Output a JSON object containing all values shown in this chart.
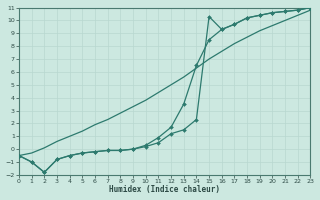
{
  "xlabel": "Humidex (Indice chaleur)",
  "xlim": [
    0,
    23
  ],
  "ylim": [
    -2,
    11
  ],
  "xticks": [
    0,
    1,
    2,
    3,
    4,
    5,
    6,
    7,
    8,
    9,
    10,
    11,
    12,
    13,
    14,
    15,
    16,
    17,
    18,
    19,
    20,
    21,
    22,
    23
  ],
  "yticks": [
    -2,
    -1,
    0,
    1,
    2,
    3,
    4,
    5,
    6,
    7,
    8,
    9,
    10,
    11
  ],
  "line_color": "#2d7a6e",
  "bg_color": "#cce8e0",
  "grid_color": "#b8d8d0",
  "line1_x": [
    0,
    1,
    2,
    3,
    4,
    5,
    6,
    7,
    8,
    9,
    10,
    11,
    12,
    13,
    14,
    15,
    16,
    17,
    18,
    19,
    20,
    21,
    22,
    23
  ],
  "line1_y": [
    -0.5,
    -1.0,
    -1.8,
    -0.8,
    -0.5,
    -0.3,
    -0.2,
    -0.1,
    -0.1,
    0.0,
    0.2,
    0.5,
    1.2,
    1.5,
    2.3,
    10.3,
    9.3,
    9.7,
    10.2,
    10.4,
    10.6,
    10.7,
    10.8,
    11.0
  ],
  "line2_x": [
    0,
    1,
    2,
    3,
    4,
    5,
    6,
    7,
    8,
    9,
    10,
    11,
    12,
    13,
    14,
    15,
    16,
    17,
    18,
    19,
    20,
    21,
    22,
    23
  ],
  "line2_y": [
    -0.5,
    -0.3,
    0.1,
    0.6,
    1.0,
    1.4,
    1.9,
    2.3,
    2.8,
    3.3,
    3.8,
    4.4,
    5.0,
    5.6,
    6.3,
    7.0,
    7.6,
    8.2,
    8.7,
    9.2,
    9.6,
    10.0,
    10.4,
    10.8
  ],
  "line3_x": [
    0,
    1,
    2,
    3,
    4,
    5,
    6,
    7,
    8,
    9,
    10,
    11,
    12,
    13,
    14,
    15,
    16,
    17,
    18,
    19,
    20,
    21,
    22,
    23
  ],
  "line3_y": [
    -0.5,
    -1.0,
    -1.8,
    -0.8,
    -0.5,
    -0.3,
    -0.2,
    -0.1,
    -0.1,
    0.0,
    0.3,
    0.9,
    1.7,
    3.5,
    6.5,
    8.5,
    9.3,
    9.7,
    10.2,
    10.4,
    10.6,
    10.7,
    10.8,
    11.0
  ]
}
